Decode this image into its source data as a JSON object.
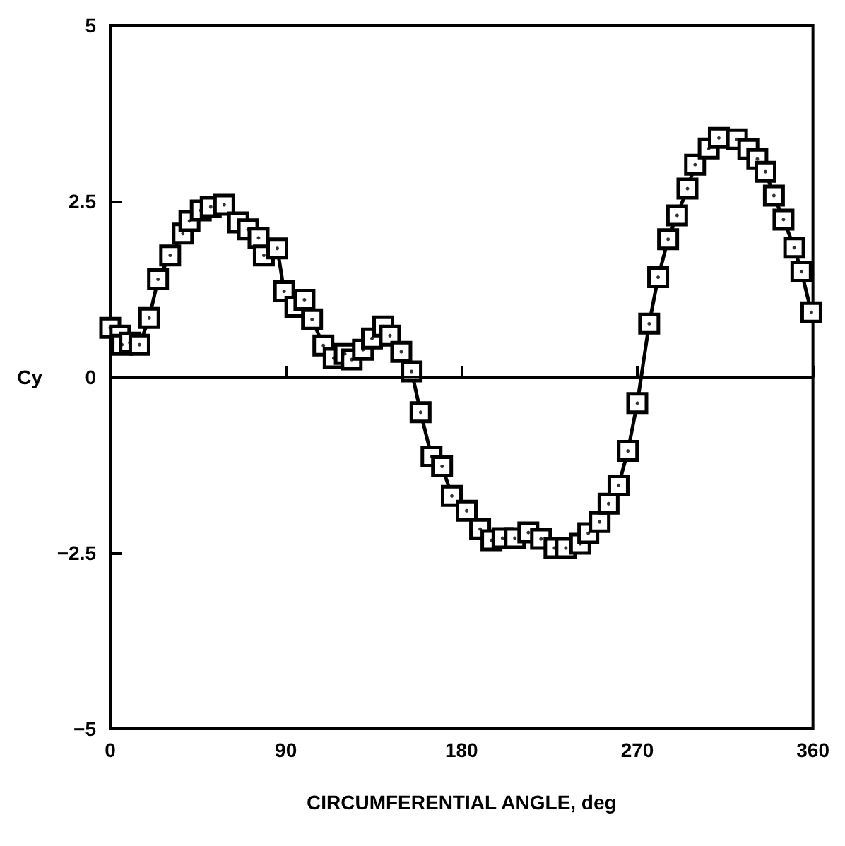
{
  "chart_data": {
    "type": "line",
    "xlabel": "CIRCUMFERENTIAL ANGLE, deg",
    "ylabel": "Cy",
    "xlim": [
      0,
      360
    ],
    "xticks": [
      0,
      90,
      180,
      270,
      360
    ],
    "ylim": [
      -5,
      5
    ],
    "yticks": [
      -5,
      -2.5,
      0,
      2.5,
      5
    ],
    "grid": false,
    "marker": "square",
    "line_style": "solid",
    "ref_lines": [
      {
        "axis": "y",
        "value": 0,
        "color": "#000000"
      }
    ],
    "series": [
      {
        "color": "#000000",
        "x": [
          0,
          5,
          6,
          10,
          15,
          20,
          24.5,
          30.7,
          37.2,
          40.6,
          46.4,
          51.5,
          58.4,
          65.6,
          70.6,
          76,
          78.7,
          85.6,
          89.1,
          94.9,
          99.5,
          103.4,
          109.2,
          114.5,
          120.2,
          123.7,
          129.5,
          134.1,
          139.9,
          143.3,
          149.1,
          154.4,
          159,
          164.6,
          170,
          175,
          182.6,
          189.5,
          195.3,
          201,
          207.3,
          214.2,
          220.7,
          227.6,
          233.4,
          240.8,
          244.9,
          250.7,
          255.3,
          260.4,
          265.2,
          270,
          276.1,
          280.7,
          285.8,
          290.4,
          295.7,
          299.6,
          306.6,
          311.8,
          321.1,
          326.9,
          331.5,
          335.7,
          340,
          344.9,
          350.4,
          354.1,
          359.2
        ],
        "values": [
          0.7,
          0.59,
          0.46,
          0.49,
          0.46,
          0.84,
          1.39,
          1.73,
          2.04,
          2.22,
          2.37,
          2.42,
          2.45,
          2.2,
          2.1,
          1.98,
          1.73,
          1.83,
          1.22,
          1.0,
          1.1,
          0.82,
          0.45,
          0.27,
          0.33,
          0.25,
          0.39,
          0.55,
          0.72,
          0.59,
          0.36,
          0.08,
          -0.5,
          -1.13,
          -1.27,
          -1.69,
          -1.9,
          -2.16,
          -2.32,
          -2.29,
          -2.29,
          -2.21,
          -2.3,
          -2.43,
          -2.43,
          -2.37,
          -2.22,
          -2.06,
          -1.8,
          -1.54,
          -1.05,
          -0.37,
          0.76,
          1.42,
          1.96,
          2.3,
          2.68,
          3.02,
          3.25,
          3.4,
          3.38,
          3.24,
          3.1,
          2.92,
          2.58,
          2.24,
          1.84,
          1.5,
          0.92
        ]
      }
    ]
  }
}
